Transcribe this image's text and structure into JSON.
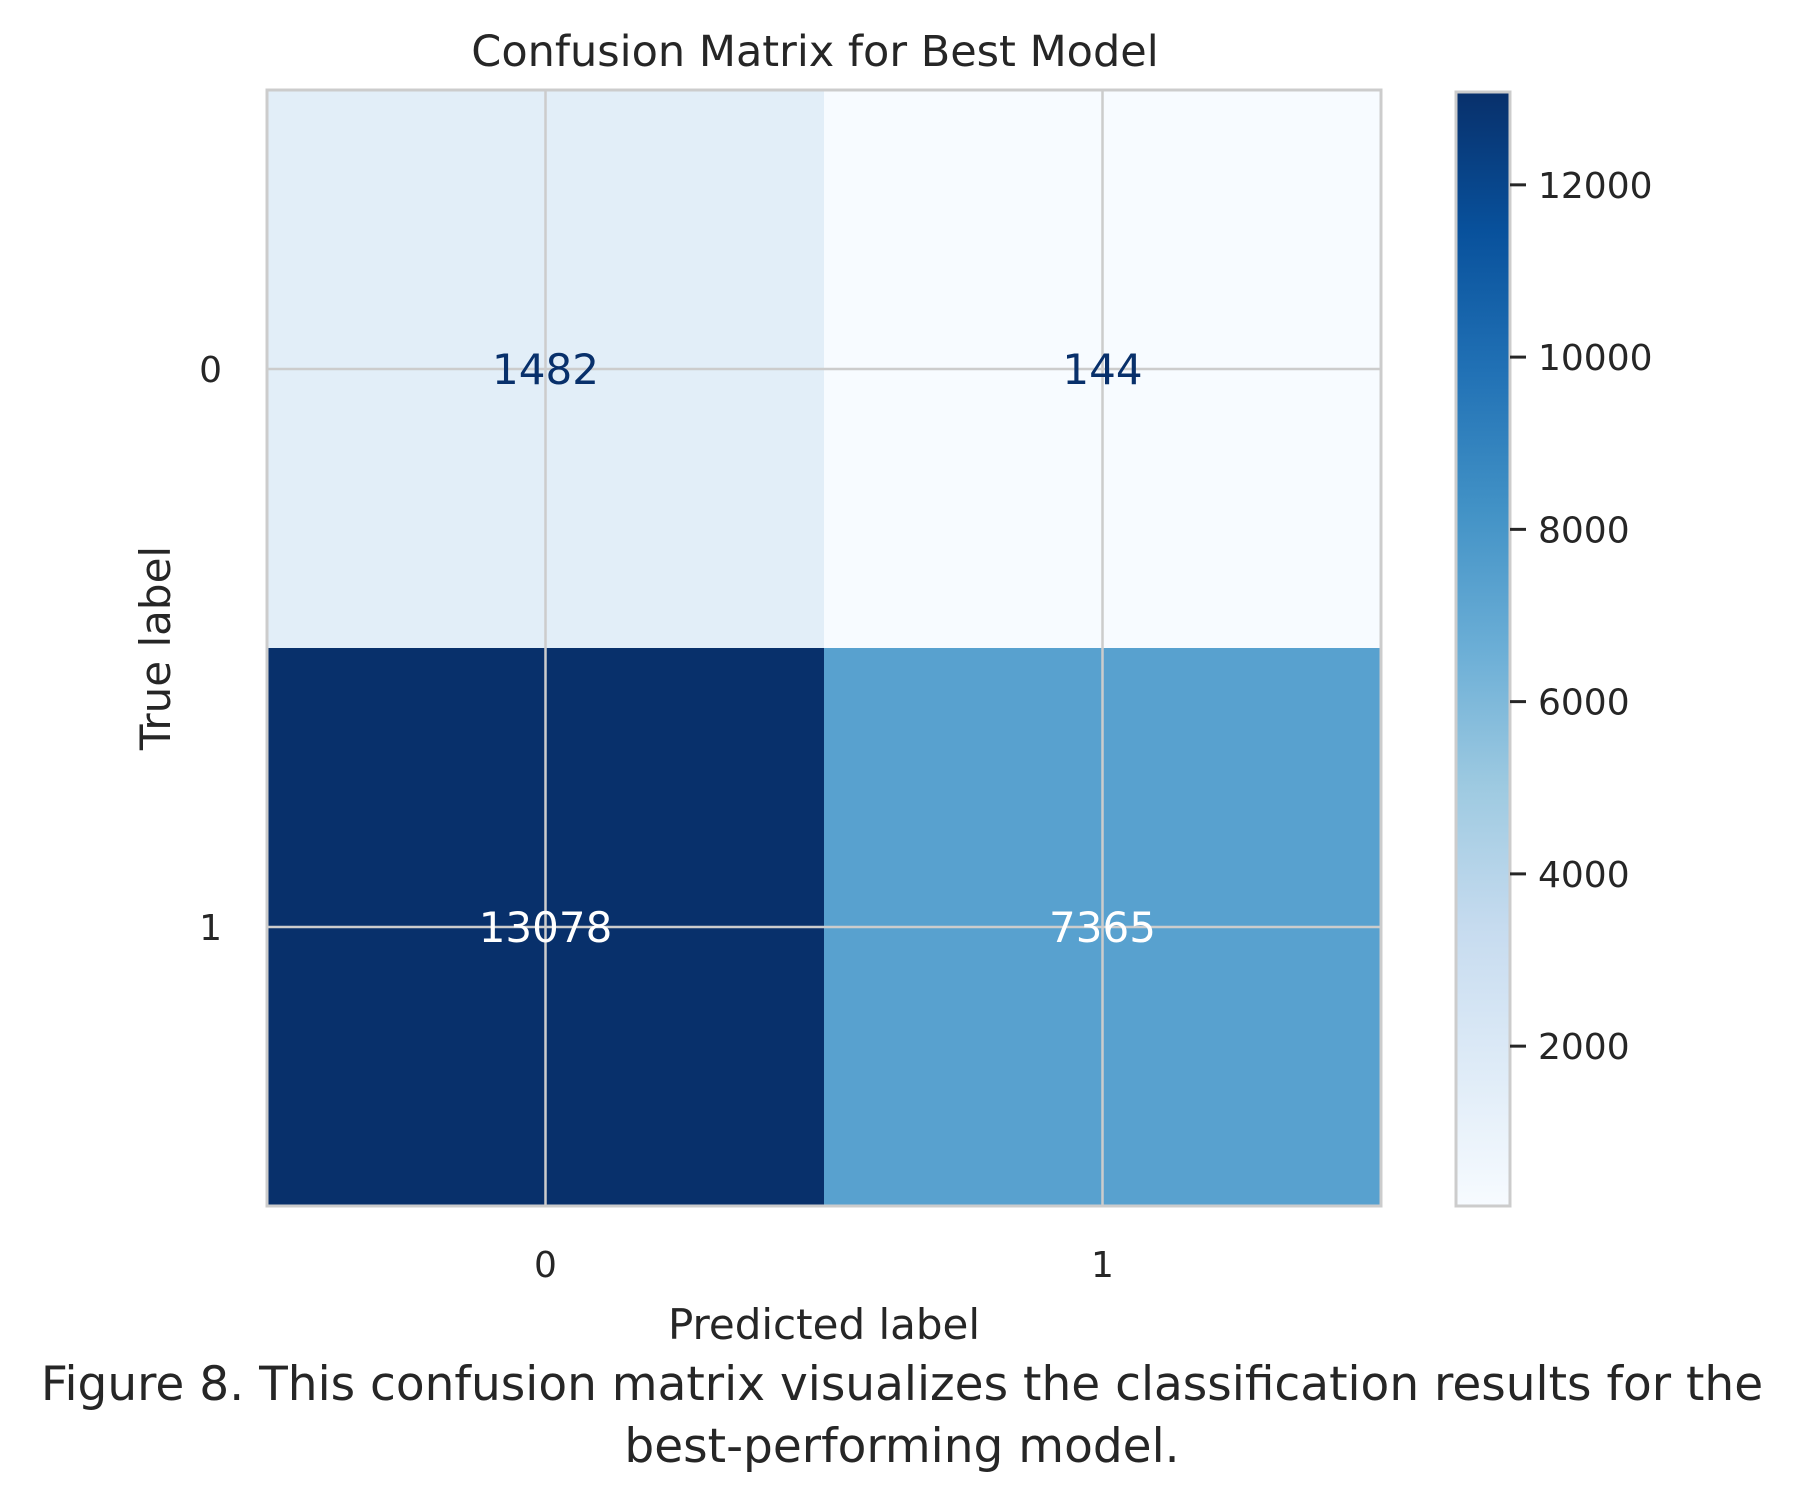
{
  "chart_data": {
    "type": "heatmap",
    "title": "Confusion Matrix for Best Model",
    "xlabel": "Predicted label",
    "ylabel": "True label",
    "x_categories": [
      "0",
      "1"
    ],
    "y_categories": [
      "0",
      "1"
    ],
    "values": [
      [
        1482,
        144
      ],
      [
        13078,
        7365
      ]
    ],
    "colormap": "Blues",
    "colorbar": {
      "range": [
        144,
        13078
      ],
      "ticks": [
        2000,
        4000,
        6000,
        8000,
        10000,
        12000
      ],
      "tick_labels": [
        "2000",
        "4000",
        "6000",
        "8000",
        "10000",
        "12000"
      ]
    },
    "grid": true
  },
  "caption": {
    "line1": "Figure 8. This confusion matrix visualizes the classification results for the",
    "line2": "best-performing model."
  },
  "colors": {
    "frame": "#cccccc",
    "grid": "#cccccc",
    "text": "#262626",
    "cell_text_dark": "#08306b",
    "cell_text_light": "#ffffff"
  }
}
